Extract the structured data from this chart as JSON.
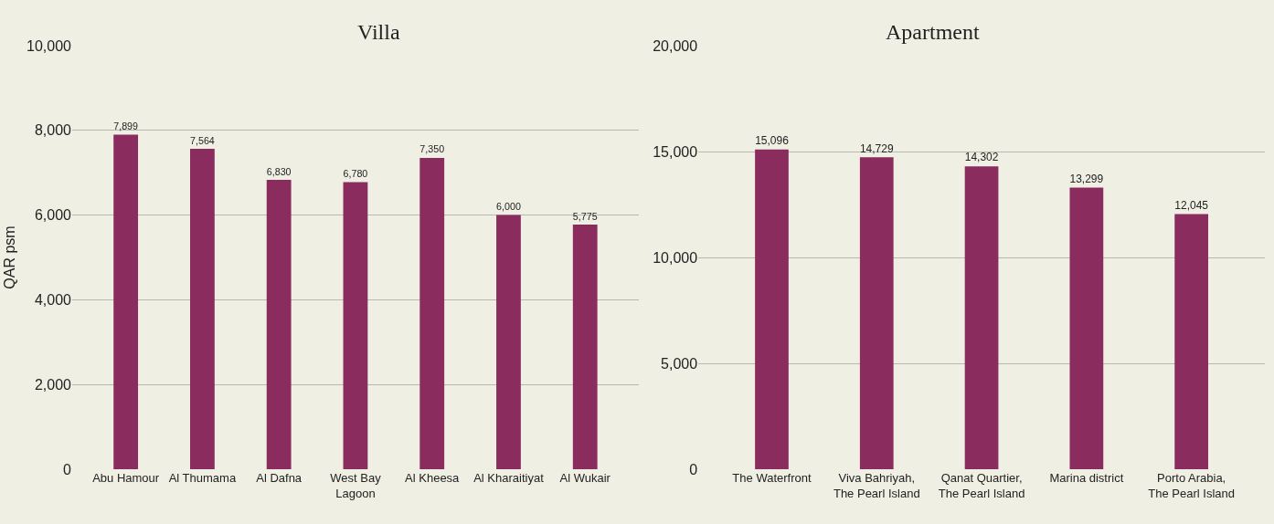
{
  "chart_data": [
    {
      "type": "bar",
      "title": "Villa",
      "ylabel": "QAR psm",
      "categories": [
        "Abu Hamour",
        "Al Thumama",
        "Al Dafna",
        "West Bay Lagoon",
        "Al Kheesa",
        "Al Kharaitiyat",
        "Al Wukair"
      ],
      "values": [
        7899,
        7564,
        6830,
        6780,
        7350,
        6000,
        5775
      ],
      "value_labels": [
        "7,899",
        "7,564",
        "6,830",
        "6,780",
        "7,350",
        "6,000",
        "5,775"
      ],
      "color": "#8b2c5e",
      "ylim": [
        0,
        10000
      ],
      "yticks": [
        {
          "value": 0,
          "label": "0"
        },
        {
          "value": 2000,
          "label": "2,000"
        },
        {
          "value": 4000,
          "label": "4,000"
        },
        {
          "value": 6000,
          "label": "6,000"
        },
        {
          "value": 8000,
          "label": "8,000"
        },
        {
          "value": 10000,
          "label": "10,000"
        }
      ],
      "grid": "y"
    },
    {
      "type": "bar",
      "title": "Apartment",
      "categories": [
        "The Waterfront",
        "Viva Bahriyah, The Pearl Island",
        "Qanat Quartier, The Pearl Island",
        "Marina district",
        "Porto Arabia, The Pearl Island"
      ],
      "values": [
        15096,
        14729,
        14302,
        13299,
        12045
      ],
      "value_labels": [
        "15,096",
        "14,729",
        "14,302",
        "13,299",
        "12,045"
      ],
      "color": "#8b2c5e",
      "ylim": [
        0,
        20000
      ],
      "yticks": [
        {
          "value": 0,
          "label": "0"
        },
        {
          "value": 5000,
          "label": "5,000"
        },
        {
          "value": 10000,
          "label": "10,000"
        },
        {
          "value": 15000,
          "label": "15,000"
        },
        {
          "value": 20000,
          "label": "20,000"
        }
      ],
      "grid": "y"
    }
  ]
}
